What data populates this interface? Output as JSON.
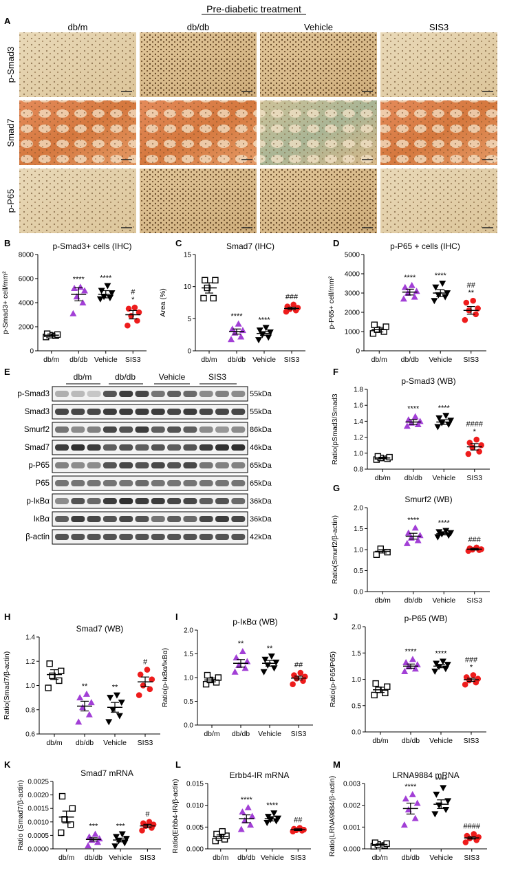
{
  "figure_title": "Pre-diabetic treatment",
  "groups": [
    "db/m",
    "db/db",
    "Vehicle",
    "SIS3"
  ],
  "colors": {
    "dbm": "#000000",
    "dbdb": "#a23fd6",
    "veh": "#000000",
    "sis3": "#ee1c1c"
  },
  "panel_letters": [
    "A",
    "B",
    "C",
    "D",
    "E",
    "F",
    "G",
    "H",
    "I",
    "J",
    "K",
    "L",
    "M"
  ],
  "ihc": {
    "rows": [
      "p-Smad3",
      "Smad7",
      "p-P65"
    ],
    "cols": [
      "db/m",
      "db/db",
      "Vehicle",
      "SIS3"
    ]
  },
  "western_blot": {
    "group_headers": [
      "db/m",
      "db/db",
      "Vehicle",
      "SIS3"
    ],
    "bands": [
      {
        "label": "p-Smad3",
        "kda": "55kDa"
      },
      {
        "label": "Smad3",
        "kda": "55kDa"
      },
      {
        "label": "Smurf2",
        "kda": "86kDa"
      },
      {
        "label": "Smad7",
        "kda": "46kDa"
      },
      {
        "label": "p-P65",
        "kda": "65kDa"
      },
      {
        "label": "P65",
        "kda": "65kDa"
      },
      {
        "label": "p-IκBα",
        "kda": "36kDa"
      },
      {
        "label": "IκBα",
        "kda": "36kDa"
      },
      {
        "label": "β-actin",
        "kda": "42kDa"
      }
    ]
  },
  "chart_data": [
    {
      "id": "B",
      "type": "scatter",
      "title": "p-Smad3+ cells (IHC)",
      "ylabel": "p-Smad3+ cell/mm²",
      "categories": [
        "db/m",
        "db/db",
        "Vehicle",
        "SIS3"
      ],
      "ylim": [
        0,
        8000
      ],
      "yticks": [
        0,
        2000,
        4000,
        6000,
        8000
      ],
      "means": [
        1300,
        4700,
        4700,
        3000
      ],
      "sem": [
        100,
        550,
        300,
        350
      ],
      "points": [
        [
          1150,
          1250,
          1300,
          1350,
          1420
        ],
        [
          3100,
          4000,
          4500,
          5000,
          5200,
          5300
        ],
        [
          4300,
          4400,
          4500,
          4800,
          5000,
          5400
        ],
        [
          2100,
          2500,
          2900,
          3200,
          3500,
          3600
        ]
      ],
      "annotations": [
        [
          "",
          ""
        ],
        [
          "****",
          ""
        ],
        [
          "****",
          ""
        ],
        [
          "#",
          "*"
        ]
      ]
    },
    {
      "id": "C",
      "type": "scatter",
      "title": "Smad7 (IHC)",
      "ylabel": "Area (%)",
      "categories": [
        "db/m",
        "db/db",
        "Vehicle",
        "SIS3"
      ],
      "ylim": [
        0,
        15
      ],
      "yticks": [
        0,
        5,
        10,
        15
      ],
      "means": [
        9.8,
        3.0,
        2.7,
        6.6
      ],
      "sem": [
        0.8,
        0.4,
        0.3,
        0.2
      ],
      "points": [
        [
          8.2,
          8.2,
          9.8,
          11.0,
          11.0
        ],
        [
          1.8,
          2.2,
          2.8,
          3.2,
          3.4,
          4.2
        ],
        [
          1.7,
          2.1,
          2.5,
          2.9,
          3.2,
          3.6
        ],
        [
          6.1,
          6.3,
          6.5,
          6.7,
          6.9,
          7.2
        ]
      ],
      "annotations": [
        [
          "",
          ""
        ],
        [
          "****",
          ""
        ],
        [
          "****",
          ""
        ],
        [
          "###",
          ""
        ]
      ]
    },
    {
      "id": "D",
      "type": "scatter",
      "title": "p-P65 + cells (IHC)",
      "ylabel": "p-P65+ cell/mm²",
      "categories": [
        "db/m",
        "db/db",
        "Vehicle",
        "SIS3"
      ],
      "ylim": [
        0,
        5000
      ],
      "yticks": [
        0,
        1000,
        2000,
        3000,
        4000,
        5000
      ],
      "means": [
        1100,
        3050,
        3000,
        2100
      ],
      "sem": [
        120,
        150,
        180,
        200
      ],
      "points": [
        [
          900,
          1000,
          1100,
          1250,
          1350
        ],
        [
          2700,
          2800,
          3000,
          3100,
          3300,
          3400
        ],
        [
          2600,
          2800,
          2900,
          3000,
          3300,
          3500
        ],
        [
          1600,
          1900,
          2100,
          2200,
          2500,
          2600
        ]
      ],
      "annotations": [
        [
          "",
          ""
        ],
        [
          "****",
          ""
        ],
        [
          "****",
          ""
        ],
        [
          "##",
          "**"
        ]
      ]
    },
    {
      "id": "F",
      "type": "scatter",
      "title": "p-Smad3 (WB)",
      "ylabel": "Ratio(pSmad3/Smad3",
      "categories": [
        "db/m",
        "db/db",
        "Vehicle",
        "SIS3"
      ],
      "ylim": [
        0.8,
        1.8
      ],
      "yticks": [
        0.8,
        1.0,
        1.2,
        1.4,
        1.6,
        1.8
      ],
      "means": [
        0.94,
        1.39,
        1.39,
        1.08
      ],
      "sem": [
        0.01,
        0.03,
        0.03,
        0.04
      ],
      "points": [
        [
          0.92,
          0.93,
          0.94,
          0.95,
          0.96
        ],
        [
          1.34,
          1.36,
          1.38,
          1.4,
          1.42,
          1.46
        ],
        [
          1.33,
          1.36,
          1.38,
          1.41,
          1.44,
          1.47
        ],
        [
          0.99,
          1.02,
          1.07,
          1.1,
          1.13,
          1.17
        ]
      ],
      "annotations": [
        [
          "",
          ""
        ],
        [
          "****",
          ""
        ],
        [
          "****",
          ""
        ],
        [
          "####",
          "*"
        ]
      ]
    },
    {
      "id": "G",
      "type": "scatter",
      "title": "Smurf2 (WB)",
      "ylabel": "Ratio(Smurf2/β-actin)",
      "categories": [
        "db/m",
        "db/db",
        "Vehicle",
        "SIS3"
      ],
      "ylim": [
        0,
        2.0
      ],
      "yticks": [
        0.0,
        0.5,
        1.0,
        1.5,
        2.0
      ],
      "means": [
        0.96,
        1.32,
        1.38,
        1.01
      ],
      "sem": [
        0.04,
        0.07,
        0.03,
        0.02
      ],
      "points": [
        [
          0.88,
          0.94,
          1.02
        ],
        [
          1.15,
          1.22,
          1.28,
          1.34,
          1.4,
          1.52
        ],
        [
          1.3,
          1.34,
          1.37,
          1.4,
          1.42,
          1.45
        ],
        [
          0.97,
          0.99,
          1.0,
          1.01,
          1.03,
          1.05
        ]
      ],
      "annotations": [
        [
          "",
          ""
        ],
        [
          "****",
          ""
        ],
        [
          "****",
          ""
        ],
        [
          "###",
          ""
        ]
      ]
    },
    {
      "id": "H",
      "type": "scatter",
      "title": "Smad7 (WB)",
      "ylabel": "Ratio(Smad7/β-actin)",
      "categories": [
        "db/m",
        "db/db",
        "Vehicle",
        "SIS3"
      ],
      "ylim": [
        0.6,
        1.4
      ],
      "yticks": [
        0.6,
        0.8,
        1.0,
        1.2,
        1.4
      ],
      "means": [
        1.09,
        0.83,
        0.82,
        1.03
      ],
      "sem": [
        0.04,
        0.04,
        0.04,
        0.04
      ],
      "points": [
        [
          0.98,
          1.04,
          1.08,
          1.12,
          1.18
        ],
        [
          0.7,
          0.76,
          0.82,
          0.86,
          0.9,
          0.93
        ],
        [
          0.7,
          0.75,
          0.8,
          0.86,
          0.9,
          0.92
        ],
        [
          0.92,
          0.97,
          1.0,
          1.05,
          1.09,
          1.13
        ]
      ],
      "annotations": [
        [
          "",
          ""
        ],
        [
          "**",
          ""
        ],
        [
          "**",
          ""
        ],
        [
          "#",
          ""
        ]
      ]
    },
    {
      "id": "I",
      "type": "scatter",
      "title": "p-IκBα (WB)",
      "ylabel": "Ratio(p-IκBα/IκBα)",
      "categories": [
        "db/m",
        "db/db",
        "Vehicle",
        "SIS3"
      ],
      "ylim": [
        0,
        2.0
      ],
      "yticks": [
        0.0,
        0.5,
        1.0,
        1.5,
        2.0
      ],
      "means": [
        0.95,
        1.3,
        1.3,
        0.99
      ],
      "sem": [
        0.04,
        0.08,
        0.06,
        0.04
      ],
      "points": [
        [
          0.86,
          0.9,
          0.95,
          1.0,
          1.05
        ],
        [
          1.12,
          1.2,
          1.26,
          1.34,
          1.42,
          1.55
        ],
        [
          1.12,
          1.2,
          1.26,
          1.32,
          1.38,
          1.45
        ],
        [
          0.86,
          0.93,
          0.98,
          1.02,
          1.05,
          1.1
        ]
      ],
      "annotations": [
        [
          "",
          ""
        ],
        [
          "**",
          ""
        ],
        [
          "**",
          ""
        ],
        [
          "##",
          ""
        ]
      ]
    },
    {
      "id": "J",
      "type": "scatter",
      "title": "p-P65 (WB)",
      "ylabel": "Ratio(p-P65/P65)",
      "categories": [
        "db/m",
        "db/db",
        "Vehicle",
        "SIS3"
      ],
      "ylim": [
        0,
        2.0
      ],
      "yticks": [
        0.0,
        0.5,
        1.0,
        1.5,
        2.0
      ],
      "means": [
        0.8,
        1.25,
        1.25,
        0.99
      ],
      "sem": [
        0.05,
        0.04,
        0.03,
        0.03
      ],
      "points": [
        [
          0.7,
          0.74,
          0.8,
          0.86,
          0.92
        ],
        [
          1.15,
          1.2,
          1.24,
          1.28,
          1.32,
          1.38
        ],
        [
          1.15,
          1.2,
          1.24,
          1.28,
          1.3,
          1.34
        ],
        [
          0.9,
          0.94,
          0.98,
          1.01,
          1.04,
          1.08
        ]
      ],
      "annotations": [
        [
          "",
          ""
        ],
        [
          "****",
          ""
        ],
        [
          "****",
          ""
        ],
        [
          "###",
          "*"
        ]
      ]
    },
    {
      "id": "K",
      "type": "scatter",
      "title": "Smad7 mRNA",
      "ylabel": "Ratio (Smad7/β-actin)",
      "categories": [
        "db/m",
        "db/db",
        "Vehicle",
        "SIS3"
      ],
      "ylim": [
        0,
        0.0025
      ],
      "yticks": [
        0.0,
        0.0005,
        0.001,
        0.0015,
        0.002,
        0.0025
      ],
      "means": [
        0.00118,
        0.00035,
        0.00033,
        0.00085
      ],
      "sem": [
        0.00022,
        6e-05,
        7e-05,
        6e-05
      ],
      "points": [
        [
          0.0006,
          0.0009,
          0.0011,
          0.0015,
          0.00195
        ],
        [
          0.00012,
          0.00025,
          0.00033,
          0.00038,
          0.00045,
          0.00055
        ],
        [
          0.0001,
          0.00022,
          0.0003,
          0.00038,
          0.00045,
          0.00055
        ],
        [
          0.00068,
          0.00078,
          0.00085,
          0.0009,
          0.00095,
          0.001
        ]
      ],
      "annotations": [
        [
          "",
          ""
        ],
        [
          "***",
          ""
        ],
        [
          "***",
          ""
        ],
        [
          "#",
          ""
        ]
      ]
    },
    {
      "id": "L",
      "type": "scatter",
      "title": "Erbb4-IR mRNA",
      "ylabel": "Ratio(Erbb4-IR/β-actin)",
      "categories": [
        "db/m",
        "db/db",
        "Vehicle",
        "SIS3"
      ],
      "ylim": [
        0,
        0.015
      ],
      "yticks": [
        0.0,
        0.005,
        0.01,
        0.015
      ],
      "means": [
        0.0028,
        0.0069,
        0.0069,
        0.0044
      ],
      "sem": [
        0.0004,
        0.0009,
        0.0005,
        0.0002
      ],
      "points": [
        [
          0.0018,
          0.0022,
          0.0026,
          0.003,
          0.0034,
          0.004
        ],
        [
          0.0045,
          0.0055,
          0.0065,
          0.0075,
          0.0085,
          0.0095
        ],
        [
          0.006,
          0.0064,
          0.0067,
          0.007,
          0.0074,
          0.0082
        ],
        [
          0.004,
          0.0042,
          0.0043,
          0.0044,
          0.0046,
          0.0048
        ]
      ],
      "annotations": [
        [
          "",
          ""
        ],
        [
          "****",
          ""
        ],
        [
          "****",
          ""
        ],
        [
          "##",
          ""
        ]
      ]
    },
    {
      "id": "M",
      "type": "scatter",
      "title": "LRNA9884 mRNA",
      "ylabel": "Ratio(LRNA9884/β-actin)",
      "categories": [
        "db/m",
        "db/db",
        "Vehicle",
        "SIS3"
      ],
      "ylim": [
        0,
        0.003
      ],
      "yticks": [
        0.0,
        0.001,
        0.002,
        0.003
      ],
      "means": [
        0.0002,
        0.00185,
        0.00205,
        0.0005
      ],
      "sem": [
        3e-05,
        0.00025,
        0.0002,
        5e-05
      ],
      "points": [
        [
          0.00012,
          0.00016,
          0.0002,
          0.00024,
          0.00028
        ],
        [
          0.0011,
          0.0014,
          0.0018,
          0.0021,
          0.0023,
          0.0025
        ],
        [
          0.0016,
          0.0018,
          0.002,
          0.0022,
          0.0025,
          0.0028
        ],
        [
          0.0003,
          0.0004,
          0.00048,
          0.00054,
          0.0006,
          0.00068
        ]
      ],
      "annotations": [
        [
          "",
          ""
        ],
        [
          "****",
          ""
        ],
        [
          "****",
          ""
        ],
        [
          "####",
          ""
        ]
      ]
    }
  ]
}
